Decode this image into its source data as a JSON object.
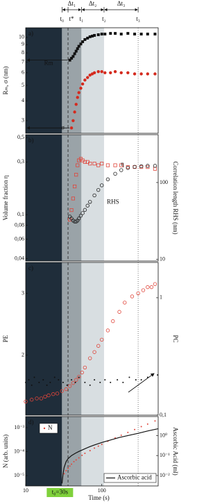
{
  "timeline": {
    "regions": [
      {
        "from": 10,
        "to": 30,
        "color": "#1f2d3a"
      },
      {
        "from": 30,
        "to": 54,
        "color": "#9aa3a8"
      },
      {
        "from": 54,
        "to": 107,
        "color": "#d8dee1"
      }
    ],
    "times": [
      {
        "label": "t₀",
        "value": 30
      },
      {
        "label": "t*",
        "value": 36
      },
      {
        "label": "t₁",
        "value": 54
      },
      {
        "label": "t₂",
        "value": 107
      },
      {
        "label": "t₃",
        "value": 300
      }
    ],
    "phases": [
      {
        "label": "Δt₁",
        "from": 30,
        "to": 54
      },
      {
        "label": "Δt₂",
        "from": 54,
        "to": 107
      },
      {
        "label": "Δt₃",
        "from": 107,
        "to": 300
      }
    ],
    "dashed": 36,
    "dotted": 300,
    "start_label": {
      "text": "t₀=30s",
      "value": 30,
      "color": "#7fd13b"
    }
  },
  "chart_data": [
    {
      "type": "scatter",
      "label": "a)",
      "ylabel": "Rₘ, σ (nm)",
      "xlim": [
        10,
        550
      ],
      "xlog": true,
      "ylim": [
        2.5,
        11.5
      ],
      "ylog": true,
      "yticks": [
        3,
        4,
        5,
        6,
        7,
        8,
        9,
        10
      ],
      "series": [
        {
          "name": "Rm",
          "color": "#111111",
          "marker": "square",
          "x": [
            38,
            40,
            42,
            44,
            46,
            48,
            50,
            53,
            56,
            60,
            65,
            70,
            75,
            80,
            90,
            100,
            110,
            130,
            150,
            180,
            220,
            270,
            330,
            400,
            500
          ],
          "values": [
            7.2,
            7.4,
            7.6,
            7.9,
            8.2,
            8.5,
            8.8,
            9.1,
            9.4,
            9.7,
            9.9,
            10.1,
            10.2,
            10.3,
            10.4,
            10.5,
            10.5,
            10.6,
            10.6,
            10.5,
            10.6,
            10.5,
            10.5,
            10.5,
            10.5
          ]
        },
        {
          "name": "σ",
          "color": "#d42a1e",
          "marker": "circle",
          "x": [
            40,
            42,
            44,
            46,
            48,
            50,
            53,
            56,
            60,
            65,
            70,
            75,
            80,
            90,
            100,
            110,
            130,
            150,
            180,
            220,
            270,
            330,
            400,
            500
          ],
          "values": [
            2.7,
            3.0,
            3.4,
            3.8,
            4.2,
            4.5,
            4.8,
            5.1,
            5.4,
            5.6,
            5.8,
            5.9,
            6.0,
            6.1,
            6.1,
            6.0,
            6.0,
            6.1,
            6.0,
            6.0,
            5.9,
            5.9,
            5.9,
            5.9
          ]
        }
      ]
    },
    {
      "type": "scatter",
      "label": "b)",
      "ylabel": "Volume fraction η",
      "y2label": "Correlation length RHS (nm)",
      "xlim": [
        10,
        550
      ],
      "xlog": true,
      "ylim": [
        0.038,
        0.53
      ],
      "ylog": true,
      "yticks": [
        {
          "value": 0.04,
          "label": "0,04"
        },
        {
          "value": 0.06,
          "label": "0,06"
        },
        {
          "value": 0.08,
          "label": "0,08"
        },
        {
          "value": 0.1,
          "label": "0,1"
        },
        {
          "value": 0.3,
          "label": "0,3"
        },
        {
          "value": 0.5,
          "label": "0,5"
        }
      ],
      "y2lim": [
        9.5,
        420
      ],
      "y2log": true,
      "y2ticks": [
        10,
        100
      ],
      "series": [
        {
          "name": "η",
          "color": "#e0453a",
          "marker": "open-square",
          "x": [
            38,
            40,
            42,
            44,
            46,
            48,
            50,
            53,
            56,
            60,
            65,
            70,
            80,
            90,
            100,
            120,
            150,
            180,
            220,
            270,
            330,
            400,
            500
          ],
          "values": [
            0.09,
            0.11,
            0.14,
            0.18,
            0.23,
            0.28,
            0.31,
            0.32,
            0.31,
            0.3,
            0.3,
            0.29,
            0.29,
            0.28,
            0.29,
            0.28,
            0.28,
            0.28,
            0.27,
            0.27,
            0.27,
            0.27,
            0.26
          ]
        },
        {
          "name": "RHS",
          "color": "#222222",
          "marker": "open-circle",
          "axis": "y2",
          "x": [
            38,
            40,
            42,
            44,
            46,
            48,
            50,
            53,
            56,
            60,
            65,
            70,
            80,
            90,
            100,
            120,
            150,
            180,
            220,
            270,
            330,
            400,
            500
          ],
          "values": [
            36,
            34,
            32,
            31,
            31,
            32,
            34,
            37,
            40,
            44,
            50,
            56,
            68,
            80,
            92,
            110,
            130,
            145,
            155,
            160,
            163,
            165,
            165
          ]
        }
      ]
    },
    {
      "type": "scatter",
      "label": "c)",
      "ylabel": "PE",
      "y2label": "PC",
      "xlim": [
        10,
        550
      ],
      "xlog": true,
      "ylim": [
        1.03,
        3.5
      ],
      "yticks": [
        2,
        3
      ],
      "y2lim": [
        0.1,
        2
      ],
      "y2log": true,
      "y2ticks": [
        {
          "value": 0.1,
          "label": "0,1"
        },
        1
      ],
      "series": [
        {
          "color": "#e0453a",
          "marker": "open-circle",
          "x": [
            10,
            12,
            14,
            16,
            18,
            20,
            23,
            26,
            30,
            34,
            38,
            42,
            46,
            50,
            55,
            60,
            70,
            80,
            90,
            100,
            120,
            140,
            170,
            200,
            250,
            300,
            350,
            400,
            450,
            500
          ],
          "values": [
            1.25,
            1.28,
            1.3,
            1.3,
            1.33,
            1.35,
            1.37,
            1.38,
            1.42,
            1.45,
            1.5,
            1.55,
            1.6,
            1.65,
            1.72,
            1.8,
            1.95,
            2.05,
            2.15,
            2.25,
            2.4,
            2.55,
            2.7,
            2.85,
            2.95,
            3.0,
            3.05,
            3.1,
            3.1,
            3.15
          ]
        },
        {
          "color": "#111111",
          "marker": "dot",
          "axis": "y2",
          "x": [
            10,
            11,
            12,
            13,
            15,
            17,
            19,
            21,
            24,
            27,
            31,
            35,
            40,
            45,
            50,
            60,
            70,
            80,
            95,
            110,
            130,
            160,
            190,
            230,
            280,
            330,
            400,
            470,
            540
          ],
          "values": [
            0.19,
            0.2,
            0.18,
            0.21,
            0.19,
            0.2,
            0.18,
            0.19,
            0.21,
            0.2,
            0.19,
            0.18,
            0.2,
            0.19,
            0.21,
            0.19,
            0.18,
            0.2,
            0.19,
            0.2,
            0.19,
            0.2,
            0.19,
            0.21,
            0.2,
            0.2,
            0.21,
            0.22,
            0.22
          ]
        }
      ]
    },
    {
      "type": "scatter",
      "label": "d)",
      "ylabel": "N (arb. units)",
      "y2label": "Ascorbic Acid (ml)",
      "xlabel": "Time (s)",
      "xlim": [
        10,
        550
      ],
      "xlog": true,
      "xticks": [
        10,
        100
      ],
      "ylim": [
        3.7e-06,
        0.0029
      ],
      "ylog": true,
      "yticks": [
        {
          "value": 1e-05,
          "label": "10⁻⁵"
        },
        {
          "value": 0.0001,
          "label": "10⁻⁴"
        },
        {
          "value": 0.001,
          "label": "10⁻³"
        }
      ],
      "y2lim": [
        0.003,
        9
      ],
      "y2log": true,
      "y2ticks": [
        {
          "value": 0.01,
          "label": "10⁻²"
        },
        {
          "value": 0.1,
          "label": "10⁻¹"
        },
        {
          "value": 1,
          "label": "10⁰"
        }
      ],
      "series": [
        {
          "name": "N",
          "color": "#e0453a",
          "marker": "dot",
          "x": [
            32,
            34,
            36,
            38,
            40,
            43,
            46,
            50,
            55,
            60,
            70,
            80,
            90,
            100,
            120,
            150,
            180,
            220,
            270,
            330,
            400,
            500
          ],
          "values": [
            1.2e-05,
            1.6e-05,
            2e-05,
            2.5e-05,
            3e-05,
            3.8e-05,
            4.5e-05,
            5.5e-05,
            7e-05,
            8.5e-05,
            0.00011,
            0.00014,
            0.00017,
            0.0002,
            0.00027,
            0.00037,
            0.00048,
            0.00063,
            0.00083,
            0.0011,
            0.0014,
            0.0019
          ]
        },
        {
          "name": "Ascorbic acid",
          "color": "#111111",
          "marker": "line",
          "axis": "y2",
          "x": [
            30,
            31,
            32,
            34,
            36,
            40,
            45,
            50,
            60,
            70,
            80,
            100,
            130,
            170,
            220,
            300,
            400,
            550
          ],
          "values": [
            0.004,
            0.012,
            0.025,
            0.05,
            0.07,
            0.1,
            0.13,
            0.16,
            0.22,
            0.28,
            0.34,
            0.45,
            0.6,
            0.8,
            1.0,
            1.3,
            1.7,
            2.2
          ]
        }
      ]
    }
  ]
}
